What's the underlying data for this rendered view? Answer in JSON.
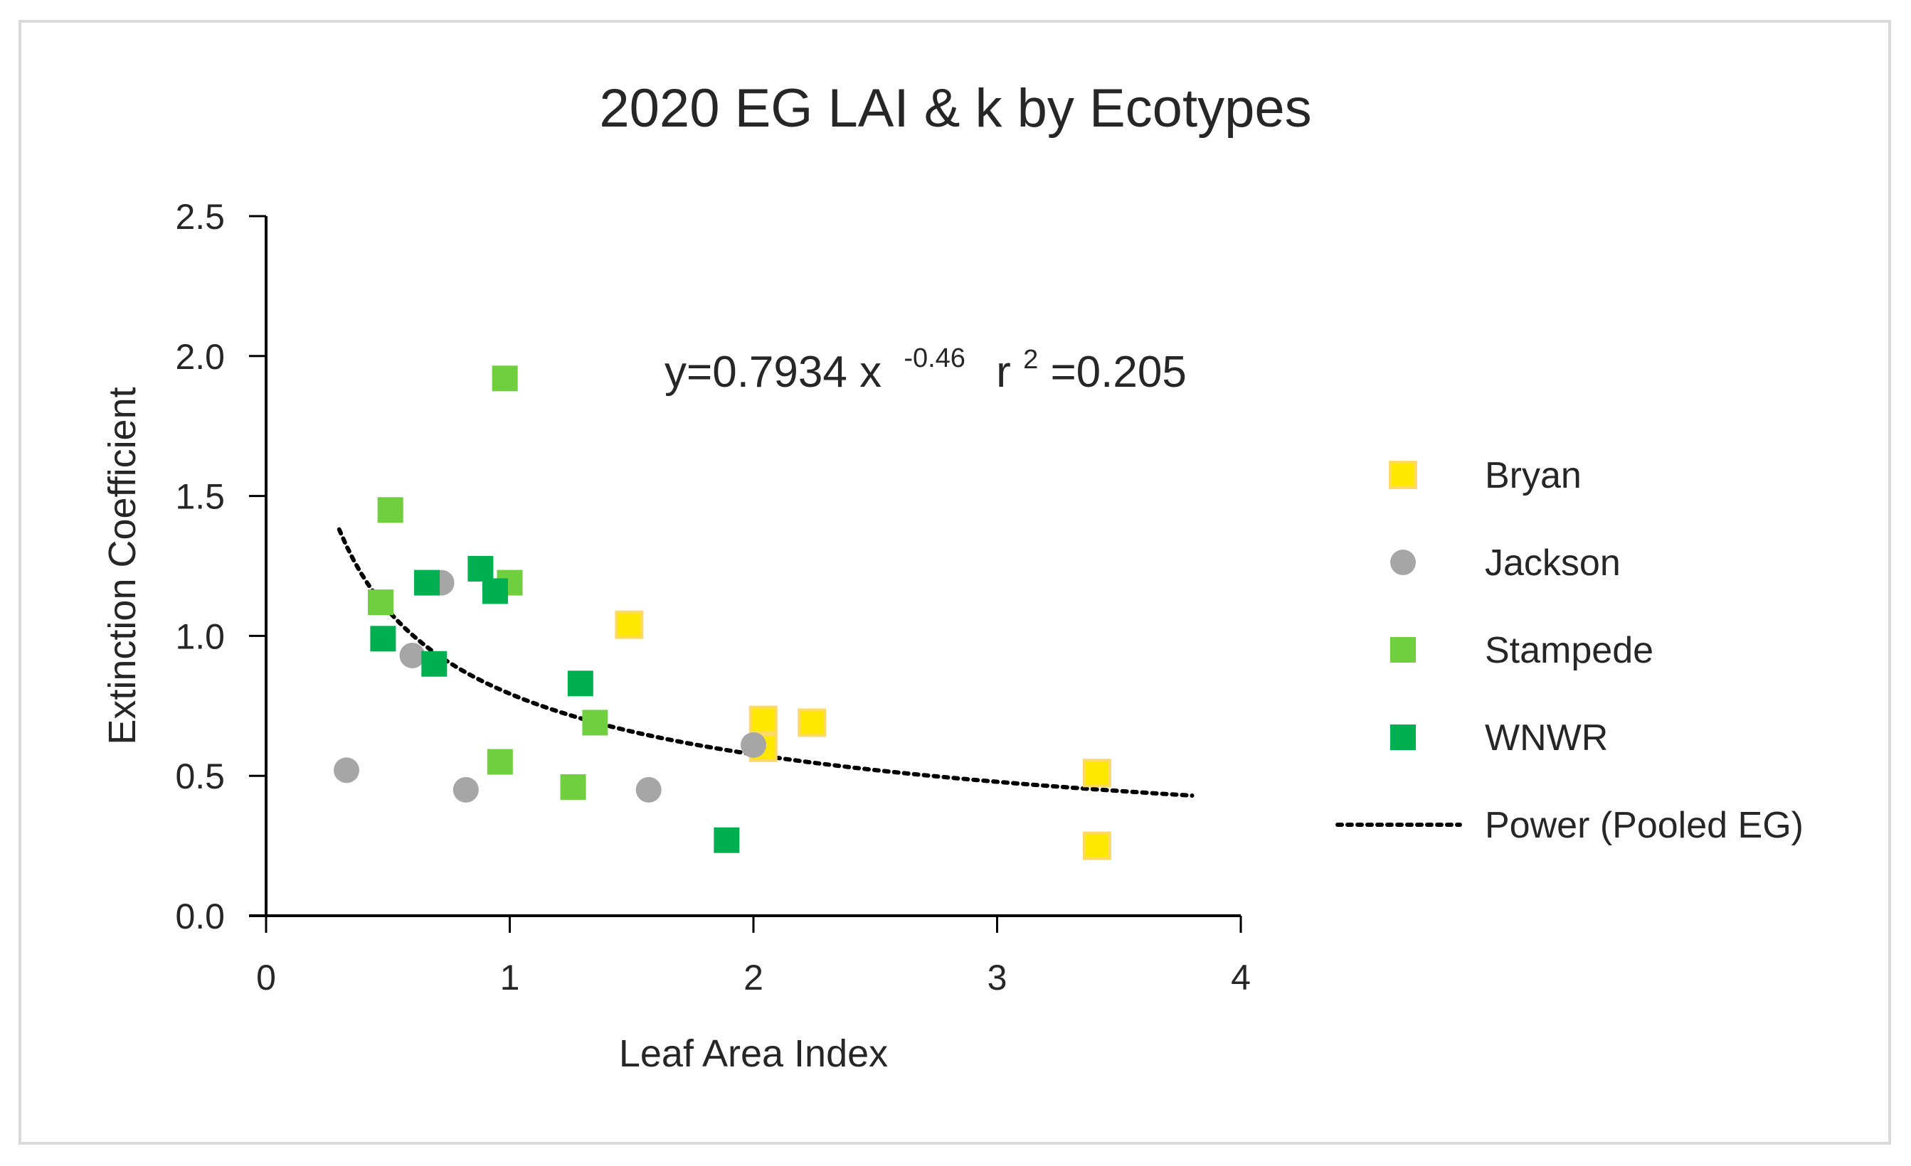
{
  "chart_data": {
    "type": "scatter",
    "title": "2020 EG LAI & k by Ecotypes",
    "xlabel": "Leaf Area Index",
    "ylabel": "Extinction Coefficient",
    "xlim": [
      0,
      4
    ],
    "ylim": [
      0,
      2.5
    ],
    "xticks": [
      0,
      1,
      2,
      3,
      4
    ],
    "xtick_labels": [
      "0",
      "1",
      "2",
      "3",
      "4"
    ],
    "yticks": [
      0,
      0.5,
      1.0,
      1.5,
      2.0,
      2.5
    ],
    "ytick_labels": [
      "0.0",
      "0.5",
      "1.0",
      "1.5",
      "2.0",
      "2.5"
    ],
    "grid": false,
    "legend_position": "right",
    "annotation": {
      "prefix": "y=0.7934 x",
      "exponent": "-0.46",
      "r2_prefix": "r",
      "r2_sup": "2",
      "r2_value": "=0.205"
    },
    "series": [
      {
        "name": "Bryan",
        "marker": "square",
        "color": "#ffe800",
        "edge_color": "#ffd966",
        "points": [
          [
            1.49,
            1.04
          ],
          [
            2.04,
            0.7
          ],
          [
            2.04,
            0.6
          ],
          [
            2.24,
            0.69
          ],
          [
            3.41,
            0.51
          ],
          [
            3.41,
            0.25
          ]
        ]
      },
      {
        "name": "Jackson",
        "marker": "circle",
        "color": "#a6a6a6",
        "points": [
          [
            0.33,
            0.52
          ],
          [
            0.6,
            0.93
          ],
          [
            0.72,
            1.19
          ],
          [
            0.82,
            0.45
          ],
          [
            1.57,
            0.45
          ],
          [
            2.0,
            0.61
          ]
        ]
      },
      {
        "name": "Stampede",
        "marker": "square",
        "color": "#6fcf3f",
        "points": [
          [
            0.98,
            1.92
          ],
          [
            0.51,
            1.45
          ],
          [
            0.47,
            1.12
          ],
          [
            1.0,
            1.19
          ],
          [
            0.96,
            0.55
          ],
          [
            1.35,
            0.69
          ],
          [
            1.26,
            0.46
          ]
        ]
      },
      {
        "name": "WNWR",
        "marker": "square",
        "color": "#00b050",
        "points": [
          [
            0.66,
            1.19
          ],
          [
            0.88,
            1.24
          ],
          [
            0.94,
            1.16
          ],
          [
            0.48,
            0.99
          ],
          [
            0.69,
            0.9
          ],
          [
            1.29,
            0.83
          ],
          [
            1.89,
            0.27
          ]
        ]
      }
    ],
    "trendline": {
      "name": "Power (Pooled EG)",
      "type": "power",
      "a": 0.7934,
      "b": -0.46,
      "x_range": [
        0.3,
        3.8
      ],
      "color": "#000000",
      "style": "dotted"
    }
  }
}
